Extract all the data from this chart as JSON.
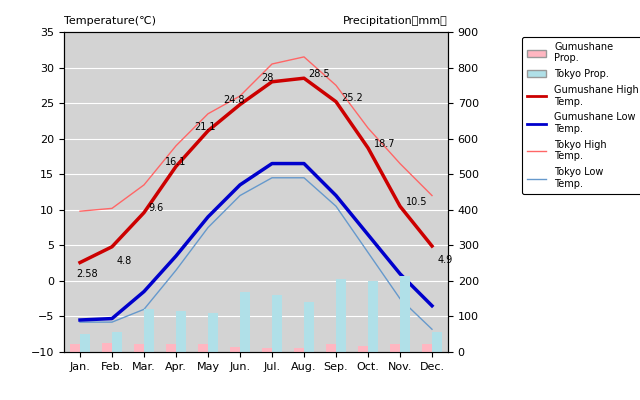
{
  "months": [
    "Jan.",
    "Feb.",
    "Mar.",
    "Apr.",
    "May",
    "Jun.",
    "Jul.",
    "Aug.",
    "Sep.",
    "Oct.",
    "Nov.",
    "Dec."
  ],
  "gumushane_high": [
    2.58,
    4.8,
    9.6,
    16.1,
    21.1,
    24.8,
    28,
    28.5,
    25.2,
    18.7,
    10.5,
    4.9
  ],
  "gumushane_low": [
    -5.5,
    -5.3,
    -1.5,
    3.5,
    9.0,
    13.5,
    16.5,
    16.5,
    12.0,
    6.5,
    1.0,
    -3.5
  ],
  "tokyo_high": [
    9.8,
    10.2,
    13.5,
    19.0,
    23.5,
    26.0,
    30.5,
    31.5,
    27.5,
    21.5,
    16.5,
    12.0
  ],
  "tokyo_low": [
    -5.8,
    -5.8,
    -4.0,
    1.5,
    7.5,
    12.0,
    14.5,
    14.5,
    10.5,
    4.0,
    -2.5,
    -6.8
  ],
  "gumushane_precip": [
    22,
    24,
    22,
    22,
    22,
    15,
    10,
    10,
    22,
    18,
    22,
    22
  ],
  "tokyo_precip": [
    50,
    55,
    120,
    115,
    110,
    170,
    160,
    140,
    205,
    200,
    215,
    55
  ],
  "title_left": "Temperature(℃)",
  "title_right": "Precipitation（mm）",
  "temp_ylim": [
    -10,
    35
  ],
  "precip_ylim": [
    0,
    900
  ],
  "bg_color": "#d3d3d3",
  "gumushane_precip_color": "#ffb6c1",
  "tokyo_precip_color": "#b0e0e8",
  "gumushane_high_color": "#cc0000",
  "gumushane_low_color": "#0000cc",
  "tokyo_high_color": "#ff6666",
  "tokyo_low_color": "#6699cc"
}
